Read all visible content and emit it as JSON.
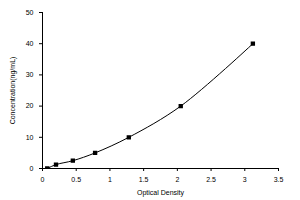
{
  "chart_data": {
    "type": "line",
    "x_label": "Optical Density",
    "y_label": "Concentration(ng/mL)",
    "x": [
      0.07,
      0.2,
      0.45,
      0.78,
      1.28,
      2.05,
      3.12
    ],
    "values": [
      0,
      1.25,
      2.5,
      5,
      10,
      20,
      40
    ],
    "color": "#000000",
    "marker": "square",
    "line_style": "solid",
    "xlim": [
      0,
      3.5
    ],
    "xticks": [
      0,
      0.5,
      1,
      1.5,
      2,
      2.5,
      3,
      3.5
    ],
    "ylim": [
      0,
      50
    ],
    "yticks": [
      0,
      10,
      20,
      30,
      40,
      50
    ],
    "grid": false
  }
}
